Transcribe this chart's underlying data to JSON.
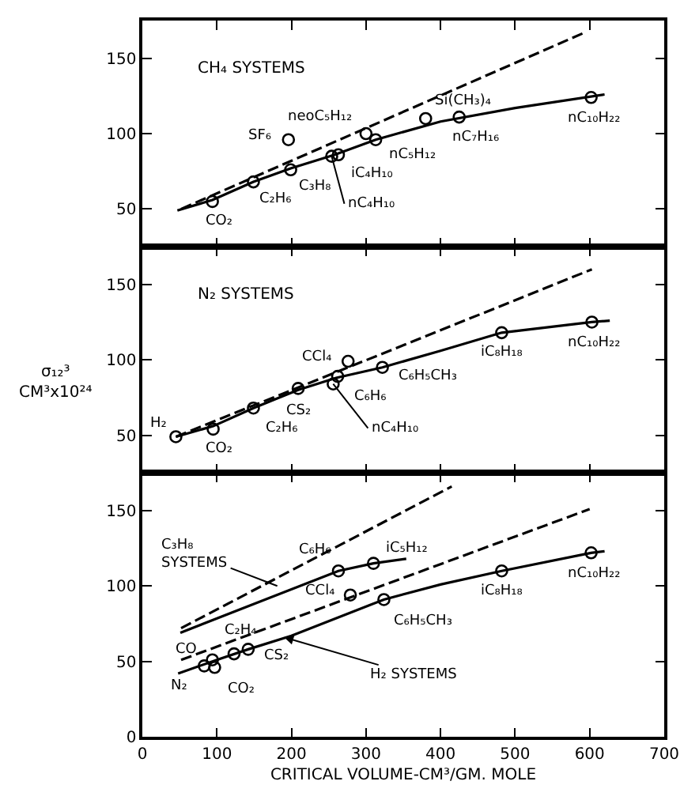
{
  "chart_data": [
    {
      "type": "scatter",
      "xlim": [
        0,
        700
      ],
      "xticks": [
        0,
        100,
        200,
        300,
        400,
        500,
        600,
        700
      ],
      "ylim": [
        25,
        175
      ],
      "yticks": [
        50,
        100,
        150
      ],
      "tick_labels": "y",
      "series": [
        {
          "marker": "circle",
          "color": "#000000",
          "x": [
            94,
            149,
            199,
            254,
            263,
            300,
            313,
            196,
            380,
            425,
            602
          ],
          "values": [
            55,
            68,
            76,
            85,
            86,
            100,
            96,
            96,
            110,
            111,
            124
          ]
        },
        {
          "type": "line",
          "marker": "none",
          "line_style": "solid",
          "color": "#000000",
          "x": [
            47,
            94,
            149,
            199,
            258,
            313,
            400,
            500,
            620
          ],
          "values": [
            49,
            56,
            68,
            77,
            86,
            96,
            108,
            117,
            126
          ]
        },
        {
          "type": "line",
          "marker": "none",
          "line_style": "dashed",
          "color": "#000000",
          "x": [
            52,
            593
          ],
          "values": [
            50,
            167
          ]
        }
      ],
      "annotations": [
        "CH₄ SYSTEMS",
        {
          "text": "CO₂",
          "x": 94,
          "y": 55
        },
        {
          "text": "C₂H₆",
          "x": 149,
          "y": 68
        },
        {
          "text": "C₃H₈",
          "x": 199,
          "y": 76
        },
        {
          "text": "nC₄H₁₀",
          "x": 254,
          "y": 85
        },
        {
          "text": "iC₄H₁₀",
          "x": 263,
          "y": 86
        },
        {
          "text": "neoC₅H₁₂",
          "x": 300,
          "y": 100
        },
        {
          "text": "nC₅H₁₂",
          "x": 313,
          "y": 96
        },
        {
          "text": "SF₆",
          "x": 196,
          "y": 96
        },
        {
          "text": "Si(CH₃)₄",
          "x": 380,
          "y": 110
        },
        {
          "text": "nC₇H₁₆",
          "x": 425,
          "y": 111
        },
        {
          "text": "nC₁₀H₂₂",
          "x": 602,
          "y": 124
        }
      ]
    },
    {
      "type": "scatter",
      "xlim": [
        0,
        700
      ],
      "xticks": [
        0,
        100,
        200,
        300,
        400,
        500,
        600,
        700
      ],
      "ylim": [
        25,
        175
      ],
      "yticks": [
        50,
        100,
        150
      ],
      "tick_labels": "y",
      "ylabel": "σ₁₂³\nCM³x10²⁴",
      "series": [
        {
          "marker": "circle",
          "color": "#000000",
          "x": [
            45,
            95,
            149,
            209,
            256,
            262,
            276,
            322,
            482,
            603
          ],
          "values": [
            49,
            54,
            68,
            81,
            84,
            89,
            99,
            95,
            118,
            125
          ]
        },
        {
          "type": "line",
          "marker": "none",
          "line_style": "solid",
          "color": "#000000",
          "x": [
            45,
            95,
            149,
            209,
            260,
            322,
            400,
            482,
            603,
            627
          ],
          "values": [
            49,
            56,
            68,
            80,
            88,
            95,
            106,
            118,
            125,
            126
          ]
        },
        {
          "type": "line",
          "marker": "none",
          "line_style": "dashed",
          "color": "#000000",
          "x": [
            45,
            603
          ],
          "values": [
            49,
            160
          ]
        }
      ],
      "annotations": [
        "N₂ SYSTEMS",
        {
          "text": "H₂",
          "x": 45,
          "y": 49
        },
        {
          "text": "CO₂",
          "x": 95,
          "y": 54
        },
        {
          "text": "C₂H₆",
          "x": 149,
          "y": 68
        },
        {
          "text": "CS₂",
          "x": 209,
          "y": 81
        },
        {
          "text": "nC₄H₁₀",
          "x": 256,
          "y": 84
        },
        {
          "text": "C₆H₆",
          "x": 262,
          "y": 89
        },
        {
          "text": "CCl₄",
          "x": 276,
          "y": 99
        },
        {
          "text": "C₆H₅CH₃",
          "x": 322,
          "y": 95
        },
        {
          "text": "iC₈H₁₈",
          "x": 482,
          "y": 118
        },
        {
          "text": "nC₁₀H₂₂",
          "x": 603,
          "y": 125
        }
      ]
    },
    {
      "type": "scatter",
      "xlim": [
        0,
        700
      ],
      "xticks": [
        0,
        100,
        200,
        300,
        400,
        500,
        600,
        700
      ],
      "ylim": [
        0,
        175
      ],
      "yticks": [
        0,
        50,
        100,
        150
      ],
      "xlabel": "CRITICAL VOLUME-CM³/GM. MOLE",
      "series": [
        {
          "marker": "circle",
          "color": "#000000",
          "x": [
            263,
            310,
            279,
            324,
            482,
            602,
            142,
            123,
            94,
            83,
            97
          ],
          "values": [
            110,
            115,
            94,
            91,
            110,
            122,
            58,
            55,
            51,
            47,
            46
          ]
        },
        {
          "type": "line",
          "marker": "none",
          "line_style": "solid",
          "color": "#000000",
          "x": [
            51,
            263,
            310,
            354
          ],
          "values": [
            69,
            110,
            115,
            118
          ]
        },
        {
          "type": "line",
          "marker": "none",
          "line_style": "dashed",
          "color": "#000000",
          "x": [
            52,
            415
          ],
          "values": [
            72,
            166
          ]
        },
        {
          "type": "line",
          "marker": "none",
          "line_style": "solid",
          "color": "#000000",
          "x": [
            48,
            100,
            142,
            200,
            324,
            400,
            482,
            602,
            620
          ],
          "values": [
            42,
            51,
            58,
            67,
            91,
            101,
            110,
            122,
            123
          ]
        },
        {
          "type": "line",
          "marker": "none",
          "line_style": "dashed",
          "color": "#000000",
          "x": [
            52,
            600
          ],
          "values": [
            51,
            151
          ]
        }
      ],
      "annotations": [
        {
          "text": "C₃H₈\nSYSTEMS",
          "x": 181,
          "y": 100
        },
        {
          "text": "H₂ SYSTEMS",
          "x": 190,
          "y": 66
        },
        {
          "text": "C₆H₆",
          "x": 263,
          "y": 110
        },
        {
          "text": "iC₅H₁₂",
          "x": 310,
          "y": 115
        },
        {
          "text": "CCl₄",
          "x": 279,
          "y": 94
        },
        {
          "text": "C₆H₅CH₃",
          "x": 324,
          "y": 91
        },
        {
          "text": "iC₈H₁₈",
          "x": 482,
          "y": 110
        },
        {
          "text": "nC₁₀H₂₂",
          "x": 602,
          "y": 122
        },
        {
          "text": "CS₂",
          "x": 142,
          "y": 58
        },
        {
          "text": "C₂H₄",
          "x": 123,
          "y": 55
        },
        {
          "text": "CO",
          "x": 94,
          "y": 51
        },
        {
          "text": "N₂",
          "x": 83,
          "y": 47
        },
        {
          "text": "CO₂",
          "x": 97,
          "y": 46
        }
      ]
    }
  ]
}
